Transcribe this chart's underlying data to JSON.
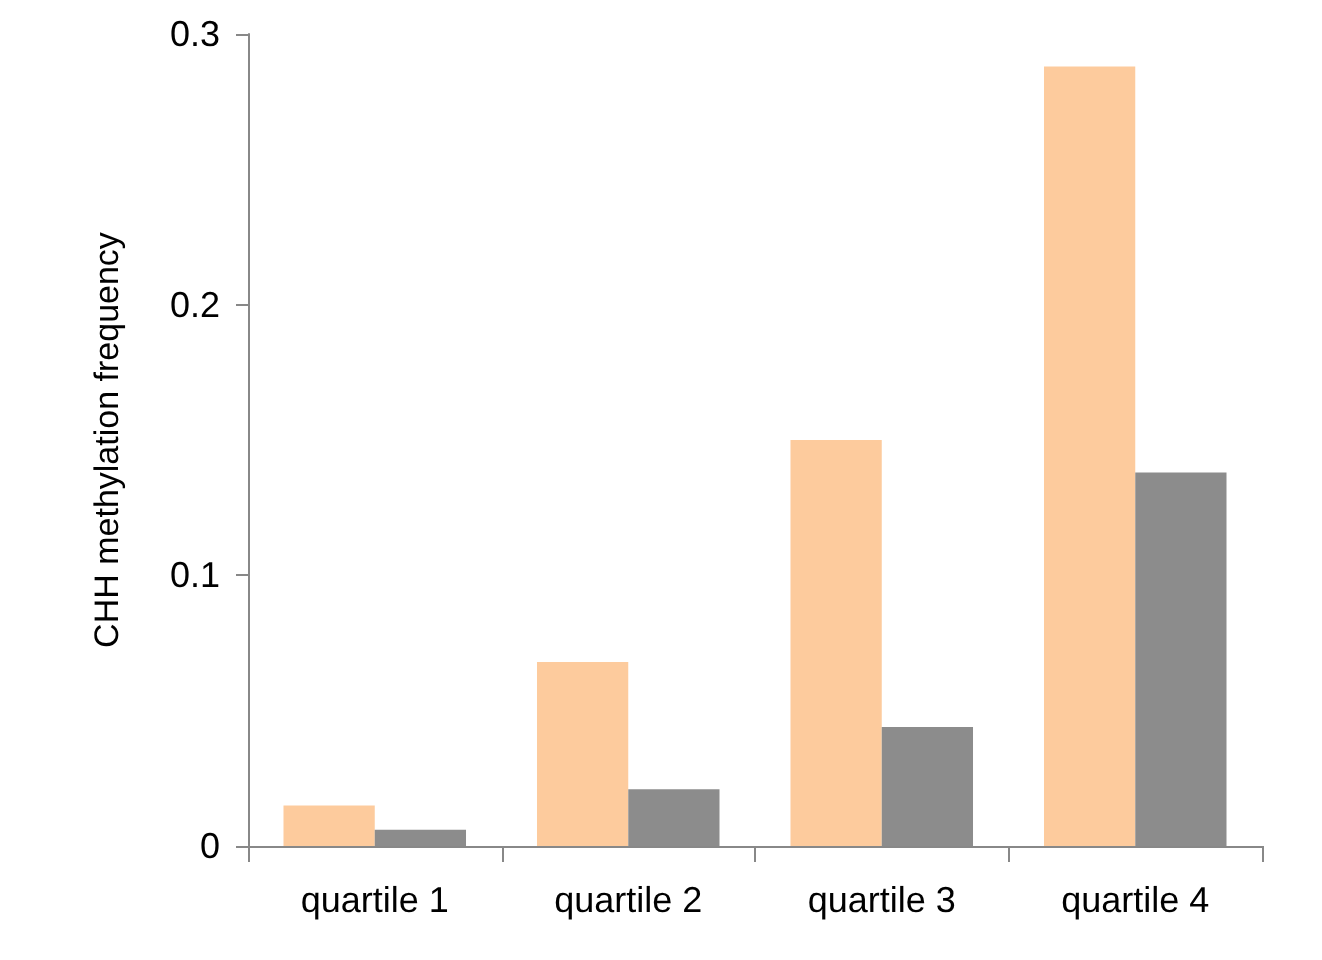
{
  "chart_data": {
    "type": "bar",
    "ylabel": "CHH methylation frequency",
    "categories": [
      "quartile 1",
      "quartile 2",
      "quartile 3",
      "quartile 4"
    ],
    "series": [
      {
        "color": "#fdcb9d",
        "values": [
          0.015,
          0.068,
          0.15,
          0.288
        ]
      },
      {
        "color": "#8c8c8c",
        "values": [
          0.006,
          0.021,
          0.044,
          0.138
        ]
      }
    ],
    "ylim": [
      0,
      0.3
    ],
    "yticks": [
      0,
      0.1,
      0.2,
      0.3
    ],
    "grid": false
  }
}
